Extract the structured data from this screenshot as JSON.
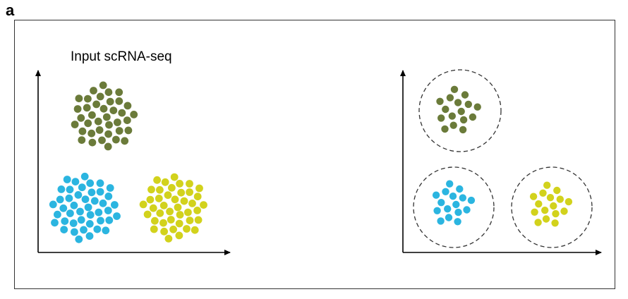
{
  "panel_label": "a",
  "left_plot": {
    "title": "Input scRNA-seq"
  },
  "colors": {
    "olive": "#6b7b3a",
    "cyan": "#2bb5e0",
    "yellow": "#d2d21c",
    "axis": "#000000",
    "dashed_circle": "#333333"
  },
  "clusters": [
    {
      "plot": "left",
      "color": "olive",
      "circled": false
    },
    {
      "plot": "left",
      "color": "cyan",
      "circled": false
    },
    {
      "plot": "left",
      "color": "yellow",
      "circled": false
    },
    {
      "plot": "right",
      "color": "olive",
      "circled": true
    },
    {
      "plot": "right",
      "color": "cyan",
      "circled": true
    },
    {
      "plot": "right",
      "color": "yellow",
      "circled": true
    }
  ]
}
